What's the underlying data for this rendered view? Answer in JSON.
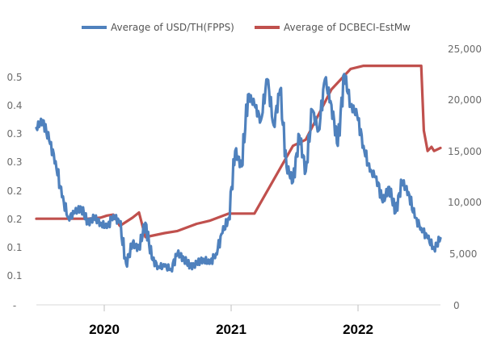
{
  "chart_data": {
    "type": "line",
    "title": "",
    "xlabel": "",
    "x_ticks": [
      "2020",
      "2021",
      "2022"
    ],
    "y_left": {
      "label": "",
      "ticks": [
        "-",
        "0.1",
        "0.1",
        "0.2",
        "0.2",
        "0.3",
        "0.3",
        "0.4",
        "0.5"
      ],
      "range": [
        0,
        0.5
      ]
    },
    "y_right": {
      "label": "",
      "ticks": [
        "0",
        "5,000",
        "10,000",
        "15,000",
        "20,000",
        "25,000"
      ],
      "range": [
        0,
        25000
      ]
    },
    "legend_position": "top",
    "series": [
      {
        "name": "Average of USD/TH(FPPS)",
        "axis": "left",
        "color": "#4f81bd",
        "x": [
          2019.5,
          2019.55,
          2019.6,
          2019.65,
          2019.7,
          2019.75,
          2019.8,
          2019.85,
          2019.9,
          2019.95,
          2020.0,
          2020.05,
          2020.1,
          2020.15,
          2020.2,
          2020.25,
          2020.3,
          2020.35,
          2020.4,
          2020.45,
          2020.5,
          2020.55,
          2020.6,
          2020.65,
          2020.7,
          2020.75,
          2020.8,
          2020.85,
          2020.9,
          2020.95,
          2021.0,
          2021.05,
          2021.1,
          2021.15,
          2021.2,
          2021.25,
          2021.3,
          2021.35,
          2021.4,
          2021.45,
          2021.5,
          2021.55,
          2021.6,
          2021.65,
          2021.7,
          2021.75,
          2021.8,
          2021.85,
          2021.9,
          2021.95,
          2022.0,
          2022.05,
          2022.1,
          2022.15,
          2022.2,
          2022.25,
          2022.3,
          2022.35,
          2022.4,
          2022.45,
          2022.5,
          2022.55,
          2022.6,
          2022.65
        ],
        "values": [
          0.345,
          0.36,
          0.32,
          0.28,
          0.21,
          0.17,
          0.18,
          0.19,
          0.16,
          0.17,
          0.16,
          0.15,
          0.175,
          0.16,
          0.08,
          0.12,
          0.11,
          0.16,
          0.09,
          0.075,
          0.075,
          0.07,
          0.1,
          0.09,
          0.075,
          0.08,
          0.09,
          0.08,
          0.1,
          0.14,
          0.17,
          0.3,
          0.27,
          0.41,
          0.39,
          0.36,
          0.44,
          0.35,
          0.42,
          0.27,
          0.24,
          0.33,
          0.26,
          0.38,
          0.34,
          0.44,
          0.39,
          0.31,
          0.45,
          0.39,
          0.37,
          0.31,
          0.26,
          0.25,
          0.2,
          0.23,
          0.18,
          0.24,
          0.22,
          0.17,
          0.15,
          0.13,
          0.11,
          0.13
        ],
        "values_note": "a few additional fine-grained wiggles are drawn between these readings"
      },
      {
        "name": "Average of DCBECI-EstMw",
        "axis": "right",
        "color": "#c0504d",
        "x": [
          2019.5,
          2019.9,
          2020.0,
          2020.05,
          2020.1,
          2020.15,
          2020.25,
          2020.3,
          2020.35,
          2020.5,
          2020.6,
          2020.75,
          2020.85,
          2021.0,
          2021.2,
          2021.5,
          2021.6,
          2021.8,
          2021.95,
          2022.05,
          2022.1,
          2022.5,
          2022.52,
          2022.55,
          2022.58,
          2022.6,
          2022.65
        ],
        "values": [
          8400,
          8400,
          8500,
          8700,
          8800,
          7700,
          8500,
          9000,
          6600,
          7000,
          7200,
          7900,
          8200,
          8900,
          8900,
          15500,
          16100,
          21000,
          23000,
          23300,
          23300,
          23300,
          17000,
          15000,
          15400,
          15000,
          15300
        ]
      }
    ]
  }
}
